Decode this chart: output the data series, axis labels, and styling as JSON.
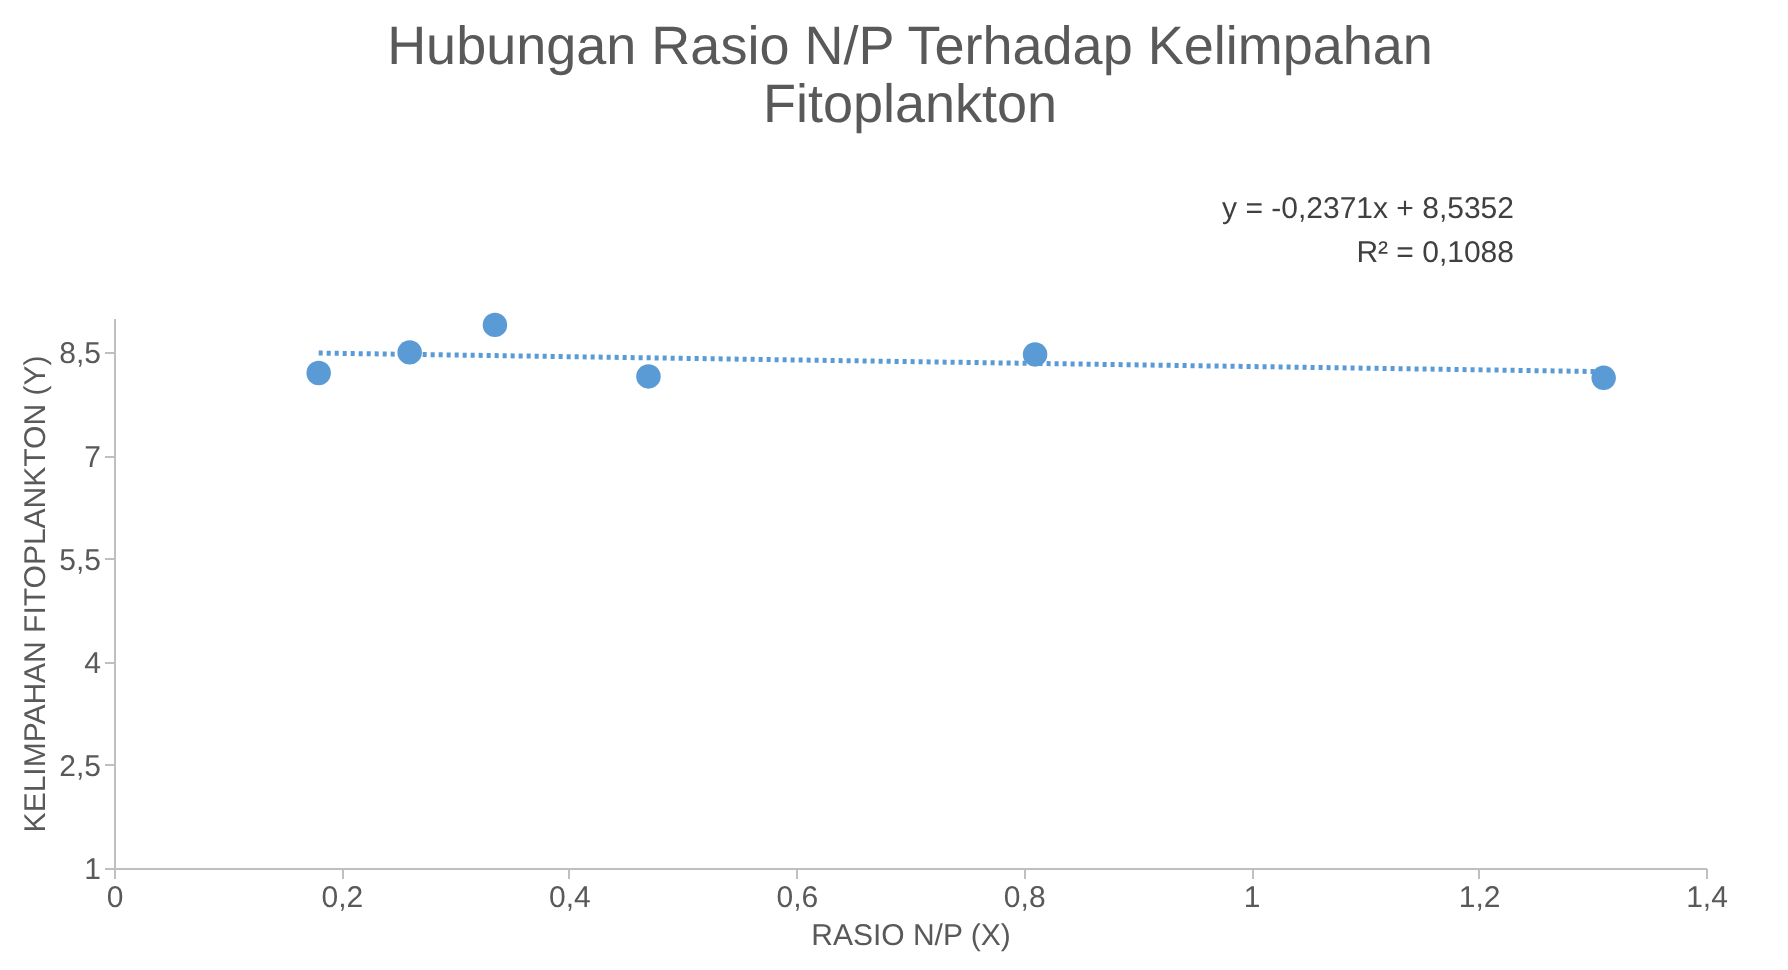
{
  "chart_data": {
    "type": "scatter",
    "title": "Hubungan Rasio N/P Terhadap Kelimpahan Fitoplankton",
    "xlabel": "RASIO N/P (X)",
    "ylabel": "KELIMPAHAN FITOPLANKTON (Y)",
    "annotations": [
      "y = -0,2371x + 8,5352",
      "R² = 0,1088"
    ],
    "x": [
      0.18,
      0.26,
      0.335,
      0.47,
      0.81,
      1.31
    ],
    "series": [
      {
        "color": "#5b9bd5",
        "values": [
          8.2,
          8.5,
          8.9,
          8.15,
          8.47,
          8.13
        ],
        "marker": "circle"
      },
      {
        "type": "line",
        "color": "#5b9bd5",
        "x": [
          0.18,
          1.31
        ],
        "values": [
          8.49,
          8.22
        ],
        "line_style": "dotted"
      }
    ],
    "xlim": [
      0,
      1.4
    ],
    "xticks": [
      {
        "value": 0,
        "label": "0"
      },
      {
        "value": 0.2,
        "label": "0,2"
      },
      {
        "value": 0.4,
        "label": "0,4"
      },
      {
        "value": 0.6,
        "label": "0,6"
      },
      {
        "value": 0.8,
        "label": "0,8"
      },
      {
        "value": 1,
        "label": "1"
      },
      {
        "value": 1.2,
        "label": "1,2"
      },
      {
        "value": 1.4,
        "label": "1,4"
      }
    ],
    "ylim": [
      1,
      9
    ],
    "yticks": [
      {
        "value": 1,
        "label": "1"
      },
      {
        "value": 2.5,
        "label": "2,5"
      },
      {
        "value": 4,
        "label": "4"
      },
      {
        "value": 5.5,
        "label": "5,5"
      },
      {
        "value": 7,
        "label": "7"
      },
      {
        "value": 8.5,
        "label": "8,5"
      }
    ],
    "grid": false
  }
}
